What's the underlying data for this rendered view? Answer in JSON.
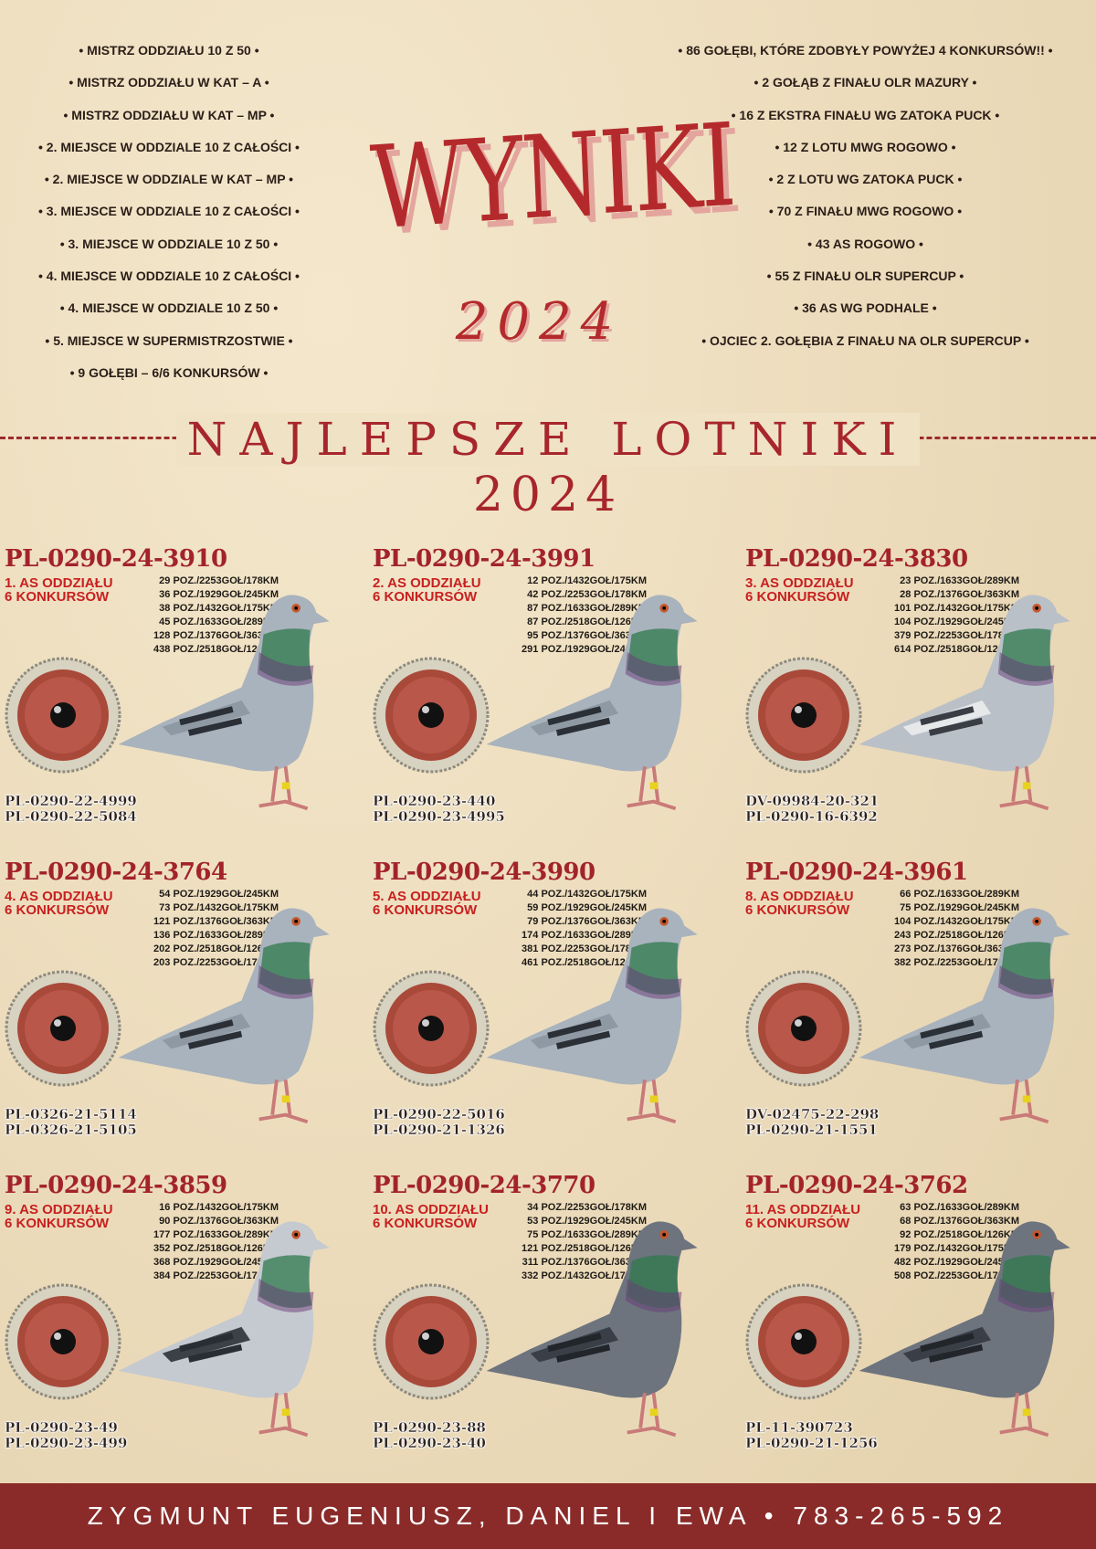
{
  "left_list": [
    "• MISTRZ ODDZIAŁU 10 Z 50 •",
    "• MISTRZ ODDZIAŁU W KAT – A •",
    "• MISTRZ ODDZIAŁU W KAT – MP •",
    "• 2. MIEJSCE W ODDZIALE 10 Z CAŁOŚCI •",
    "• 2. MIEJSCE W ODDZIALE W KAT – MP •",
    "• 3. MIEJSCE W ODDZIALE 10 Z CAŁOŚCI •",
    "• 3. MIEJSCE W ODDZIALE 10 Z 50 •",
    "• 4. MIEJSCE W ODDZIALE 10 Z CAŁOŚCI •",
    "• 4. MIEJSCE W ODDZIALE 10 Z 50 •",
    "• 5. MIEJSCE W SUPERMISTRZOSTWIE •",
    "• 9 GOŁĘBI – 6/6 KONKURSÓW •"
  ],
  "right_list": [
    "• 86 GOŁĘBI, KTÓRE ZDOBYŁY POWYŻEJ 4 KONKURSÓW!! •",
    "• 2 GOŁĄB Z FINAŁU OLR MAZURY •",
    "• 16 Z EKSTRA FINAŁU WG ZATOKA PUCK •",
    "• 12 Z LOTU MWG ROGOWO •",
    "• 2 Z LOTU WG ZATOKA PUCK •",
    "• 70 Z FINAŁU MWG ROGOWO •",
    "• 43 AS ROGOWO •",
    "• 55 Z FINAŁU OLR SUPERCUP •",
    "• 36 AS WG PODHALE •",
    "• OJCIEC 2. GOŁĘBIA Z FINAŁU NA OLR SUPERCUP •"
  ],
  "title": "WYNIKI",
  "title_year": "2024",
  "section_title": "NAJLEPSZE LOTNIKI",
  "section_year": "2024",
  "colors": {
    "accent": "#b42a2c",
    "background": "#ecdcbc",
    "footer": "#8a2b29"
  },
  "pigeons": [
    {
      "ring": "PL-0290-24-3910",
      "as": "1. AS ODDZIAŁU",
      "konk": "6 KONKURSÓW",
      "results": [
        "29 POZ./2253GOŁ/178KM",
        "36 POZ./1929GOŁ/245KM",
        "38 POZ./1432GOŁ/175KM",
        "45 POZ./1633GOŁ/289KM",
        "128 POZ./1376GOŁ/363KM",
        "438 POZ./2518GOŁ/126KM"
      ],
      "parents": [
        "PL-0290-22-4999",
        "PL-0290-22-5084"
      ],
      "plumage": "blue"
    },
    {
      "ring": "PL-0290-24-3991",
      "as": "2. AS ODDZIAŁU",
      "konk": "6 KONKURSÓW",
      "results": [
        "12 POZ./1432GOŁ/175KM",
        "42 POZ./2253GOŁ/178KM",
        "87 POZ./1633GOŁ/289KM",
        "87 POZ./2518GOŁ/126KM",
        "95 POZ./1376GOŁ/363KM",
        "291 POZ./1929GOŁ/245KM"
      ],
      "parents": [
        "PL-0290-23-440",
        "PL-0290-23-4995"
      ],
      "plumage": "blue"
    },
    {
      "ring": "PL-0290-24-3830",
      "as": "3. AS ODDZIAŁU",
      "konk": "6 KONKURSÓW",
      "results": [
        "23 POZ./1633GOŁ/289KM",
        "28 POZ./1376GOŁ/363KM",
        "101 POZ./1432GOŁ/175KM",
        "104 POZ./1929GOŁ/245KM",
        "379 POZ./2253GOŁ/178KM",
        "614 POZ./2518GOŁ/126KM"
      ],
      "parents": [
        "DV-09984-20-321",
        "PL-0290-16-6392"
      ],
      "plumage": "pied"
    },
    {
      "ring": "PL-0290-24-3764",
      "as": "4. AS ODDZIAŁU",
      "konk": "6 KONKURSÓW",
      "results": [
        "54 POZ./1929GOŁ/245KM",
        "73 POZ./1432GOŁ/175KM",
        "121 POZ./1376GOŁ/363KM",
        "136 POZ./1633GOŁ/289KM",
        "202 POZ./2518GOŁ/126KM",
        "203 POZ./2253GOŁ/178KM"
      ],
      "parents": [
        "PL-0326-21-5114",
        "PL-0326-21-5105"
      ],
      "plumage": "blue"
    },
    {
      "ring": "PL-0290-24-3990",
      "as": "5. AS ODDZIAŁU",
      "konk": "6 KONKURSÓW",
      "results": [
        "44 POZ./1432GOŁ/175KM",
        "59 POZ./1929GOŁ/245KM",
        "79 POZ./1376GOŁ/363KM",
        "174 POZ./1633GOŁ/289KM",
        "381 POZ./2253GOŁ/178KM",
        "461 POZ./2518GOŁ/126KM"
      ],
      "parents": [
        "PL-0290-22-5016",
        "PL-0290-21-1326"
      ],
      "plumage": "blue"
    },
    {
      "ring": "PL-0290-24-3961",
      "as": "8. AS ODDZIAŁU",
      "konk": "6 KONKURSÓW",
      "results": [
        "66 POZ./1633GOŁ/289KM",
        "75 POZ./1929GOŁ/245KM",
        "104 POZ./1432GOŁ/175KM",
        "243 POZ./2518GOŁ/126KM",
        "273 POZ./1376GOŁ/363KM",
        "382 POZ./2253GOŁ/178KM"
      ],
      "parents": [
        "DV-02475-22-298",
        "PL-0290-21-1551"
      ],
      "plumage": "blue"
    },
    {
      "ring": "PL-0290-24-3859",
      "as": "9. AS ODDZIAŁU",
      "konk": "6 KONKURSÓW",
      "results": [
        "16 POZ./1432GOŁ/175KM",
        "90 POZ./1376GOŁ/363KM",
        "177 POZ./1633GOŁ/289KM",
        "352 POZ./2518GOŁ/126KM",
        "368 POZ./1929GOŁ/245KM",
        "384 POZ./2253GOŁ/178KM"
      ],
      "parents": [
        "PL-0290-23-49",
        "PL-0290-23-499"
      ],
      "plumage": "checker"
    },
    {
      "ring": "PL-0290-24-3770",
      "as": "10. AS ODDZIAŁU",
      "konk": "6 KONKURSÓW",
      "results": [
        "34 POZ./2253GOŁ/178KM",
        "53 POZ./1929GOŁ/245KM",
        "75 POZ./1633GOŁ/289KM",
        "121 POZ./2518GOŁ/126KM",
        "311 POZ./1376GOŁ/363KM",
        "332 POZ./1432GOŁ/175KM"
      ],
      "parents": [
        "PL-0290-23-88",
        "PL-0290-23-40"
      ],
      "plumage": "dark"
    },
    {
      "ring": "PL-0290-24-3762",
      "as": "11. AS ODDZIAŁU",
      "konk": "6 KONKURSÓW",
      "results": [
        "63 POZ./1633GOŁ/289KM",
        "68 POZ./1376GOŁ/363KM",
        "92 POZ./2518GOŁ/126KM",
        "179 POZ./1432GOŁ/175KM",
        "482 POZ./1929GOŁ/245KM",
        "508 POZ./2253GOŁ/178KM"
      ],
      "parents": [
        "PL-11-390723",
        "PL-0290-21-1256"
      ],
      "plumage": "dark"
    }
  ],
  "footer": "ZYGMUNT EUGENIUSZ, DANIEL I EWA  •  783-265-592"
}
